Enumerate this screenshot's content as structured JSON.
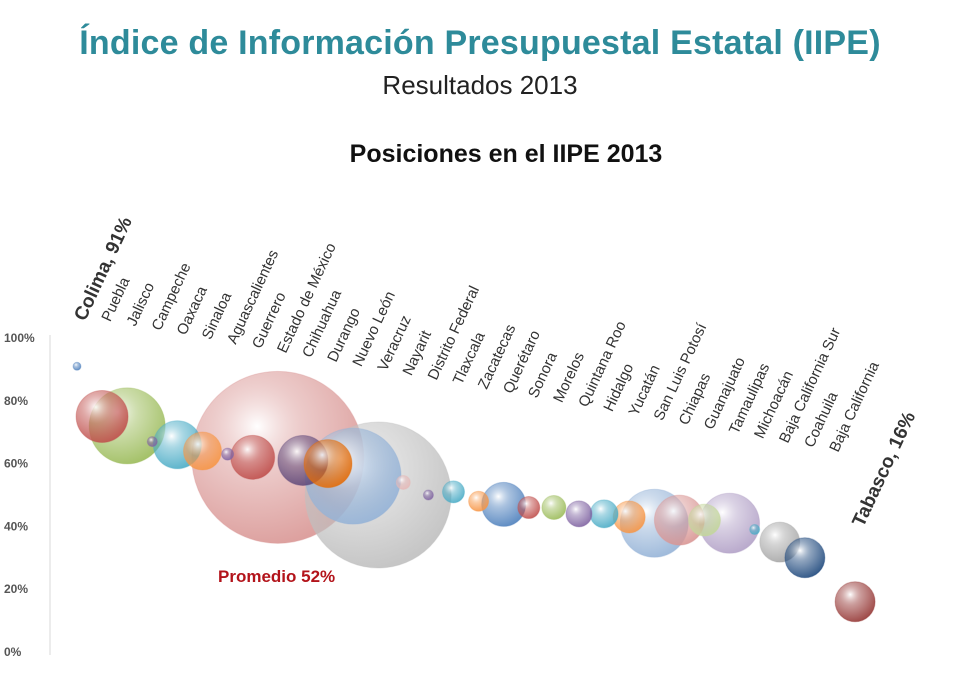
{
  "header": {
    "title": "Índice de Información Presupuestal Estatal (IIPE)",
    "subtitle": "Resultados 2013"
  },
  "chart_data": {
    "type": "scatter",
    "title": "Posiciones en el IIPE 2013",
    "ylim": [
      0,
      100
    ],
    "yticks": [
      "0%",
      "20%",
      "40%",
      "60%",
      "80%",
      "100%"
    ],
    "annotation": "Promedio 52%",
    "highlight_labels": [
      "Colima, 91%",
      "Tabasco, 16%"
    ],
    "points": [
      {
        "name": "Colima",
        "value": 91,
        "bubble": 4,
        "color": "#4f81bd"
      },
      {
        "name": "Puebla",
        "value": 75,
        "bubble": 26,
        "color": "#c0504d"
      },
      {
        "name": "Jalisco",
        "value": 72,
        "bubble": 38,
        "color": "#9bbb59"
      },
      {
        "name": "Campeche",
        "value": 67,
        "bubble": 5,
        "color": "#8064a2"
      },
      {
        "name": "Oaxaca",
        "value": 66,
        "bubble": 24,
        "color": "#4bacc6"
      },
      {
        "name": "Sinaloa",
        "value": 64,
        "bubble": 19,
        "color": "#f79646"
      },
      {
        "name": "Aguascalientes",
        "value": 63,
        "bubble": 6,
        "color": "#8064a2"
      },
      {
        "name": "Guerrero",
        "value": 62,
        "bubble": 22,
        "color": "#c0504d"
      },
      {
        "name": "Estado de México",
        "value": 62,
        "bubble": 86,
        "color": "#d99694"
      },
      {
        "name": "Chihuahua",
        "value": 61,
        "bubble": 25,
        "color": "#604a7b"
      },
      {
        "name": "Durango",
        "value": 60,
        "bubble": 24,
        "color": "#e36c09"
      },
      {
        "name": "Nuevo León",
        "value": 56,
        "bubble": 48,
        "color": "#95b3d7"
      },
      {
        "name": "Veracruz",
        "value": 50,
        "bubble": 73,
        "color": "#bfbfbf"
      },
      {
        "name": "Nayarit",
        "value": 54,
        "bubble": 7,
        "color": "#e6b9b8"
      },
      {
        "name": "Distrito Federal",
        "value": 50,
        "bubble": 5,
        "color": "#8064a2"
      },
      {
        "name": "Tlaxcala",
        "value": 51,
        "bubble": 11,
        "color": "#4bacc6"
      },
      {
        "name": "Zacatecas",
        "value": 48,
        "bubble": 10,
        "color": "#f79646"
      },
      {
        "name": "Querétaro",
        "value": 47,
        "bubble": 22,
        "color": "#4f81bd"
      },
      {
        "name": "Sonora",
        "value": 46,
        "bubble": 11,
        "color": "#c0504d"
      },
      {
        "name": "Morelos",
        "value": 46,
        "bubble": 12,
        "color": "#9bbb59"
      },
      {
        "name": "Quintana Roo",
        "value": 44,
        "bubble": 13,
        "color": "#8064a2"
      },
      {
        "name": "Hidalgo",
        "value": 44,
        "bubble": 14,
        "color": "#4bacc6"
      },
      {
        "name": "Yucatán",
        "value": 43,
        "bubble": 16,
        "color": "#f79646"
      },
      {
        "name": "San Luis Potosí",
        "value": 41,
        "bubble": 34,
        "color": "#95b3d7"
      },
      {
        "name": "Chiapas",
        "value": 42,
        "bubble": 25,
        "color": "#d99694"
      },
      {
        "name": "Guanajuato",
        "value": 42,
        "bubble": 16,
        "color": "#c3d69b"
      },
      {
        "name": "Tamaulipas",
        "value": 41,
        "bubble": 30,
        "color": "#b2a1c7"
      },
      {
        "name": "Michoacán",
        "value": 39,
        "bubble": 5,
        "color": "#4bacc6"
      },
      {
        "name": "Baja California Sur",
        "value": 35,
        "bubble": 20,
        "color": "#a6a6a6"
      },
      {
        "name": "Coahuila",
        "value": 30,
        "bubble": 20,
        "color": "#1f497d"
      },
      {
        "name": "Baja California",
        "value": 22,
        "bubble": 0,
        "color": "#ffffff"
      },
      {
        "name": "Tabasco",
        "value": 16,
        "bubble": 20,
        "color": "#953735"
      }
    ],
    "grid": false,
    "legend": "none"
  }
}
